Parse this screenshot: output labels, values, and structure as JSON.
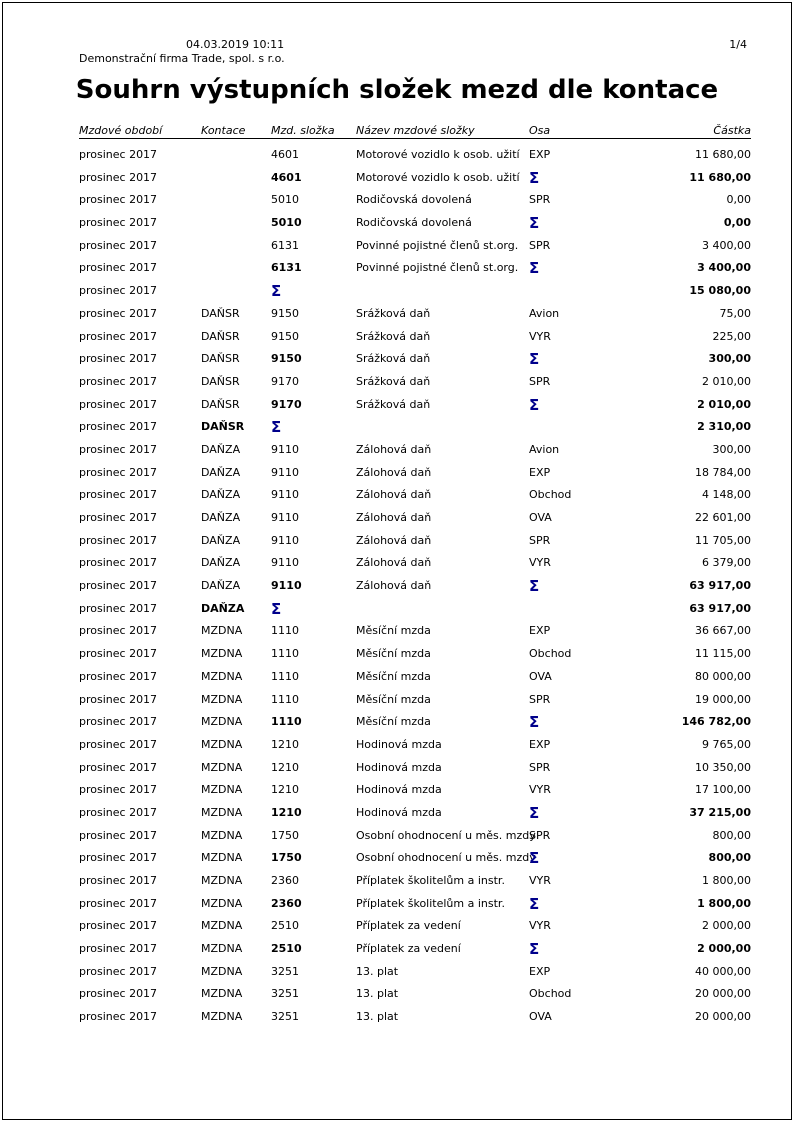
{
  "page": {
    "datetime": "04.03.2019 10:11",
    "page_number": "1/4",
    "company": "Demonstrační firma Trade, spol. s r.o.",
    "title": "Souhrn výstupních složek mezd dle kontace"
  },
  "table": {
    "columns": [
      "Mzdové období",
      "Kontace",
      "Mzd. složka",
      "Název mzdové složky",
      "Osa",
      "Částka"
    ],
    "sigma": "Σ",
    "rows": [
      {
        "type": "detail",
        "period": "prosinec 2017",
        "kontace": "",
        "slozka": "4601",
        "nazev": "Motorové vozidlo k osob. užití",
        "osa": "EXP",
        "castka": "11 680,00"
      },
      {
        "type": "group_total",
        "period": "prosinec 2017",
        "kontace": "",
        "slozka": "4601",
        "nazev": "Motorové vozidlo k osob. užití",
        "osa": "",
        "castka": "11 680,00"
      },
      {
        "type": "detail",
        "period": "prosinec 2017",
        "kontace": "",
        "slozka": "5010",
        "nazev": "Rodičovská dovolená",
        "osa": "SPR",
        "castka": "0,00"
      },
      {
        "type": "group_total",
        "period": "prosinec 2017",
        "kontace": "",
        "slozka": "5010",
        "nazev": "Rodičovská dovolená",
        "osa": "",
        "castka": "0,00"
      },
      {
        "type": "detail",
        "period": "prosinec 2017",
        "kontace": "",
        "slozka": "6131",
        "nazev": "Povinné pojistné členů st.org.",
        "osa": "SPR",
        "castka": "3 400,00"
      },
      {
        "type": "group_total",
        "period": "prosinec 2017",
        "kontace": "",
        "slozka": "6131",
        "nazev": "Povinné pojistné členů st.org.",
        "osa": "",
        "castka": "3 400,00"
      },
      {
        "type": "kontace_total",
        "period": "prosinec 2017",
        "kontace": "",
        "slozka": "",
        "nazev": "",
        "osa": "",
        "castka": "15 080,00"
      },
      {
        "type": "detail",
        "period": "prosinec 2017",
        "kontace": "DAŇSR",
        "slozka": "9150",
        "nazev": "Srážková daň",
        "osa": "Avion",
        "castka": "75,00"
      },
      {
        "type": "detail",
        "period": "prosinec 2017",
        "kontace": "DAŇSR",
        "slozka": "9150",
        "nazev": "Srážková daň",
        "osa": "VYR",
        "castka": "225,00"
      },
      {
        "type": "group_total",
        "period": "prosinec 2017",
        "kontace": "DAŇSR",
        "slozka": "9150",
        "nazev": "Srážková daň",
        "osa": "",
        "castka": "300,00"
      },
      {
        "type": "detail",
        "period": "prosinec 2017",
        "kontace": "DAŇSR",
        "slozka": "9170",
        "nazev": "Srážková daň",
        "osa": "SPR",
        "castka": "2 010,00"
      },
      {
        "type": "group_total",
        "period": "prosinec 2017",
        "kontace": "DAŇSR",
        "slozka": "9170",
        "nazev": "Srážková daň",
        "osa": "",
        "castka": "2 010,00"
      },
      {
        "type": "kontace_total",
        "period": "prosinec 2017",
        "kontace": "DAŇSR",
        "slozka": "",
        "nazev": "",
        "osa": "",
        "castka": "2 310,00"
      },
      {
        "type": "detail",
        "period": "prosinec 2017",
        "kontace": "DAŇZA",
        "slozka": "9110",
        "nazev": "Zálohová daň",
        "osa": "Avion",
        "castka": "300,00"
      },
      {
        "type": "detail",
        "period": "prosinec 2017",
        "kontace": "DAŇZA",
        "slozka": "9110",
        "nazev": "Zálohová daň",
        "osa": "EXP",
        "castka": "18 784,00"
      },
      {
        "type": "detail",
        "period": "prosinec 2017",
        "kontace": "DAŇZA",
        "slozka": "9110",
        "nazev": "Zálohová daň",
        "osa": "Obchod",
        "castka": "4 148,00"
      },
      {
        "type": "detail",
        "period": "prosinec 2017",
        "kontace": "DAŇZA",
        "slozka": "9110",
        "nazev": "Zálohová daň",
        "osa": "OVA",
        "castka": "22 601,00"
      },
      {
        "type": "detail",
        "period": "prosinec 2017",
        "kontace": "DAŇZA",
        "slozka": "9110",
        "nazev": "Zálohová daň",
        "osa": "SPR",
        "castka": "11 705,00"
      },
      {
        "type": "detail",
        "period": "prosinec 2017",
        "kontace": "DAŇZA",
        "slozka": "9110",
        "nazev": "Zálohová daň",
        "osa": "VYR",
        "castka": "6 379,00"
      },
      {
        "type": "group_total",
        "period": "prosinec 2017",
        "kontace": "DAŇZA",
        "slozka": "9110",
        "nazev": "Zálohová daň",
        "osa": "",
        "castka": "63 917,00"
      },
      {
        "type": "kontace_total",
        "period": "prosinec 2017",
        "kontace": "DAŇZA",
        "slozka": "",
        "nazev": "",
        "osa": "",
        "castka": "63 917,00"
      },
      {
        "type": "detail",
        "period": "prosinec 2017",
        "kontace": "MZDNA",
        "slozka": "1110",
        "nazev": "Měsíční mzda",
        "osa": "EXP",
        "castka": "36 667,00"
      },
      {
        "type": "detail",
        "period": "prosinec 2017",
        "kontace": "MZDNA",
        "slozka": "1110",
        "nazev": "Měsíční mzda",
        "osa": "Obchod",
        "castka": "11 115,00"
      },
      {
        "type": "detail",
        "period": "prosinec 2017",
        "kontace": "MZDNA",
        "slozka": "1110",
        "nazev": "Měsíční mzda",
        "osa": "OVA",
        "castka": "80 000,00"
      },
      {
        "type": "detail",
        "period": "prosinec 2017",
        "kontace": "MZDNA",
        "slozka": "1110",
        "nazev": "Měsíční mzda",
        "osa": "SPR",
        "castka": "19 000,00"
      },
      {
        "type": "group_total",
        "period": "prosinec 2017",
        "kontace": "MZDNA",
        "slozka": "1110",
        "nazev": "Měsíční mzda",
        "osa": "",
        "castka": "146 782,00"
      },
      {
        "type": "detail",
        "period": "prosinec 2017",
        "kontace": "MZDNA",
        "slozka": "1210",
        "nazev": "Hodinová mzda",
        "osa": "EXP",
        "castka": "9 765,00"
      },
      {
        "type": "detail",
        "period": "prosinec 2017",
        "kontace": "MZDNA",
        "slozka": "1210",
        "nazev": "Hodinová mzda",
        "osa": "SPR",
        "castka": "10 350,00"
      },
      {
        "type": "detail",
        "period": "prosinec 2017",
        "kontace": "MZDNA",
        "slozka": "1210",
        "nazev": "Hodinová mzda",
        "osa": "VYR",
        "castka": "17 100,00"
      },
      {
        "type": "group_total",
        "period": "prosinec 2017",
        "kontace": "MZDNA",
        "slozka": "1210",
        "nazev": "Hodinová mzda",
        "osa": "",
        "castka": "37 215,00"
      },
      {
        "type": "detail",
        "period": "prosinec 2017",
        "kontace": "MZDNA",
        "slozka": "1750",
        "nazev": "Osobní ohodnocení u měs. mzdy",
        "osa": "SPR",
        "castka": "800,00"
      },
      {
        "type": "group_total",
        "period": "prosinec 2017",
        "kontace": "MZDNA",
        "slozka": "1750",
        "nazev": "Osobní ohodnocení u měs. mzdy",
        "osa": "",
        "castka": "800,00"
      },
      {
        "type": "detail",
        "period": "prosinec 2017",
        "kontace": "MZDNA",
        "slozka": "2360",
        "nazev": "Příplatek školitelům a instr.",
        "osa": "VYR",
        "castka": "1 800,00"
      },
      {
        "type": "group_total",
        "period": "prosinec 2017",
        "kontace": "MZDNA",
        "slozka": "2360",
        "nazev": "Příplatek školitelům a instr.",
        "osa": "",
        "castka": "1 800,00"
      },
      {
        "type": "detail",
        "period": "prosinec 2017",
        "kontace": "MZDNA",
        "slozka": "2510",
        "nazev": "Příplatek za vedení",
        "osa": "VYR",
        "castka": "2 000,00"
      },
      {
        "type": "group_total",
        "period": "prosinec 2017",
        "kontace": "MZDNA",
        "slozka": "2510",
        "nazev": "Příplatek za vedení",
        "osa": "",
        "castka": "2 000,00"
      },
      {
        "type": "detail",
        "period": "prosinec 2017",
        "kontace": "MZDNA",
        "slozka": "3251",
        "nazev": "13. plat",
        "osa": "EXP",
        "castka": "40 000,00"
      },
      {
        "type": "detail",
        "period": "prosinec 2017",
        "kontace": "MZDNA",
        "slozka": "3251",
        "nazev": "13. plat",
        "osa": "Obchod",
        "castka": "20 000,00"
      },
      {
        "type": "detail",
        "period": "prosinec 2017",
        "kontace": "MZDNA",
        "slozka": "3251",
        "nazev": "13. plat",
        "osa": "OVA",
        "castka": "20 000,00"
      }
    ]
  }
}
